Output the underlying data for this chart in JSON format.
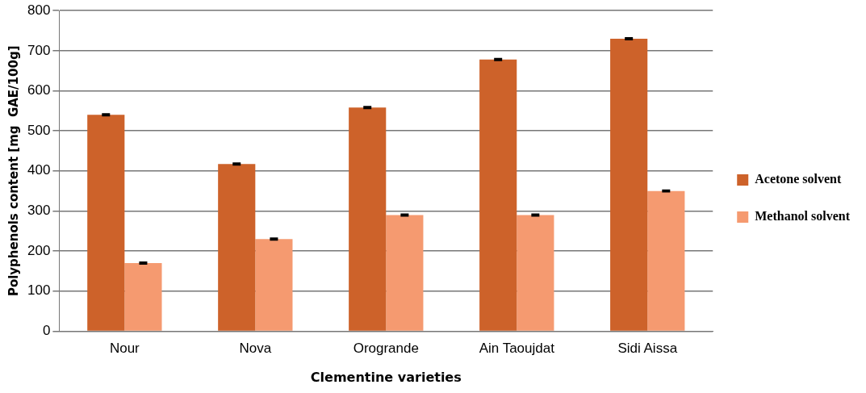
{
  "chart_data": {
    "type": "bar",
    "xlabel": "Clementine varieties",
    "ylabel": "Polyphenols content [mg  GAE/100g]",
    "categories": [
      "Nour",
      "Nova",
      "Orogrande",
      "Ain Taoujdat",
      "Sidi Aissa"
    ],
    "series": [
      {
        "name": "Acetone solvent",
        "color": "#cd622a",
        "values": [
          540,
          417,
          558,
          678,
          730
        ],
        "errors": [
          2,
          2,
          2,
          2,
          2
        ]
      },
      {
        "name": "Methanol solvent",
        "color": "#f59a70",
        "values": [
          170,
          230,
          290,
          290,
          350
        ],
        "errors": [
          2,
          2,
          2,
          2,
          2
        ]
      }
    ],
    "ylim": [
      0,
      800
    ],
    "yticks": [
      0,
      100,
      200,
      300,
      400,
      500,
      600,
      700,
      800
    ],
    "grid": "y",
    "legend": "right"
  }
}
